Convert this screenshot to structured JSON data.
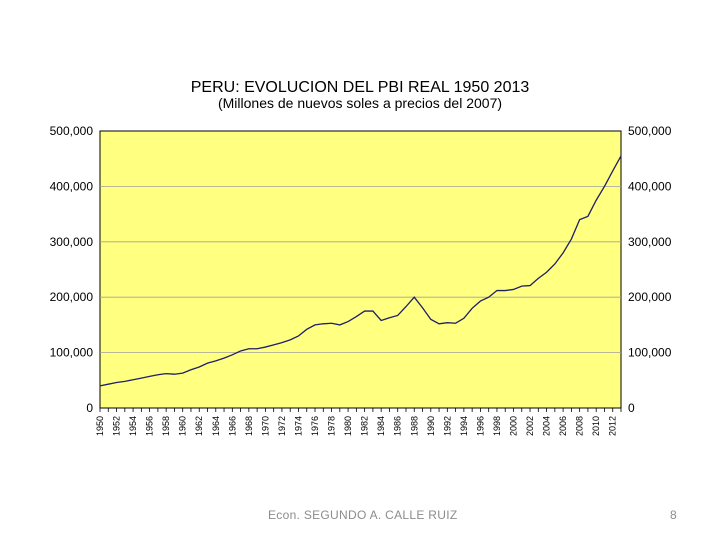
{
  "chart_data": {
    "type": "line",
    "title": "PERU: EVOLUCION DEL PBI REAL 1950 2013",
    "subtitle": "(Millones de nuevos soles a precios del 2007)",
    "xlabel": "",
    "ylabel": "",
    "ylim": [
      0,
      500000
    ],
    "yticks": [
      "0",
      "100,000",
      "200,000",
      "300,000",
      "400,000",
      "500,000"
    ],
    "ytick_values": [
      0,
      100000,
      200000,
      300000,
      400000,
      500000
    ],
    "xticks": [
      "1950",
      "1952",
      "1954",
      "1956",
      "1958",
      "1960",
      "1962",
      "1964",
      "1966",
      "1968",
      "1970",
      "1972",
      "1974",
      "1976",
      "1978",
      "1980",
      "1982",
      "1984",
      "1986",
      "1988",
      "1990",
      "1992",
      "1994",
      "1996",
      "1998",
      "2000",
      "2002",
      "2004",
      "2006",
      "2008",
      "2010",
      "2012"
    ],
    "grid": true,
    "plot_background": "#ffff80",
    "line_color": "#1f1f66",
    "grid_color": "#a0a0a0",
    "x": [
      1950,
      1951,
      1952,
      1953,
      1954,
      1955,
      1956,
      1957,
      1958,
      1959,
      1960,
      1961,
      1962,
      1963,
      1964,
      1965,
      1966,
      1967,
      1968,
      1969,
      1970,
      1971,
      1972,
      1973,
      1974,
      1975,
      1976,
      1977,
      1978,
      1979,
      1980,
      1981,
      1982,
      1983,
      1984,
      1985,
      1986,
      1987,
      1988,
      1989,
      1990,
      1991,
      1992,
      1993,
      1994,
      1995,
      1996,
      1997,
      1998,
      1999,
      2000,
      2001,
      2002,
      2003,
      2004,
      2005,
      2006,
      2007,
      2008,
      2009,
      2010,
      2011,
      2012,
      2013
    ],
    "series": [
      {
        "values": [
          40000,
          43000,
          46000,
          48000,
          51000,
          54000,
          57000,
          60000,
          62000,
          61000,
          63000,
          69000,
          74000,
          81000,
          85000,
          90000,
          96000,
          103000,
          107000,
          107000,
          110000,
          114000,
          118000,
          123000,
          130000,
          142000,
          150000,
          152000,
          153000,
          150000,
          156000,
          165000,
          175000,
          175000,
          158000,
          163000,
          167000,
          183000,
          200000,
          181000,
          160000,
          152000,
          154000,
          153000,
          162000,
          180000,
          193000,
          200000,
          212000,
          212000,
          214000,
          220000,
          221000,
          234000,
          245000,
          260000,
          280000,
          305000,
          340000,
          346000,
          375000,
          400000,
          428000,
          455000
        ]
      }
    ]
  },
  "footer": {
    "author": "Econ. SEGUNDO A. CALLE RUIZ",
    "page_number": "8"
  }
}
